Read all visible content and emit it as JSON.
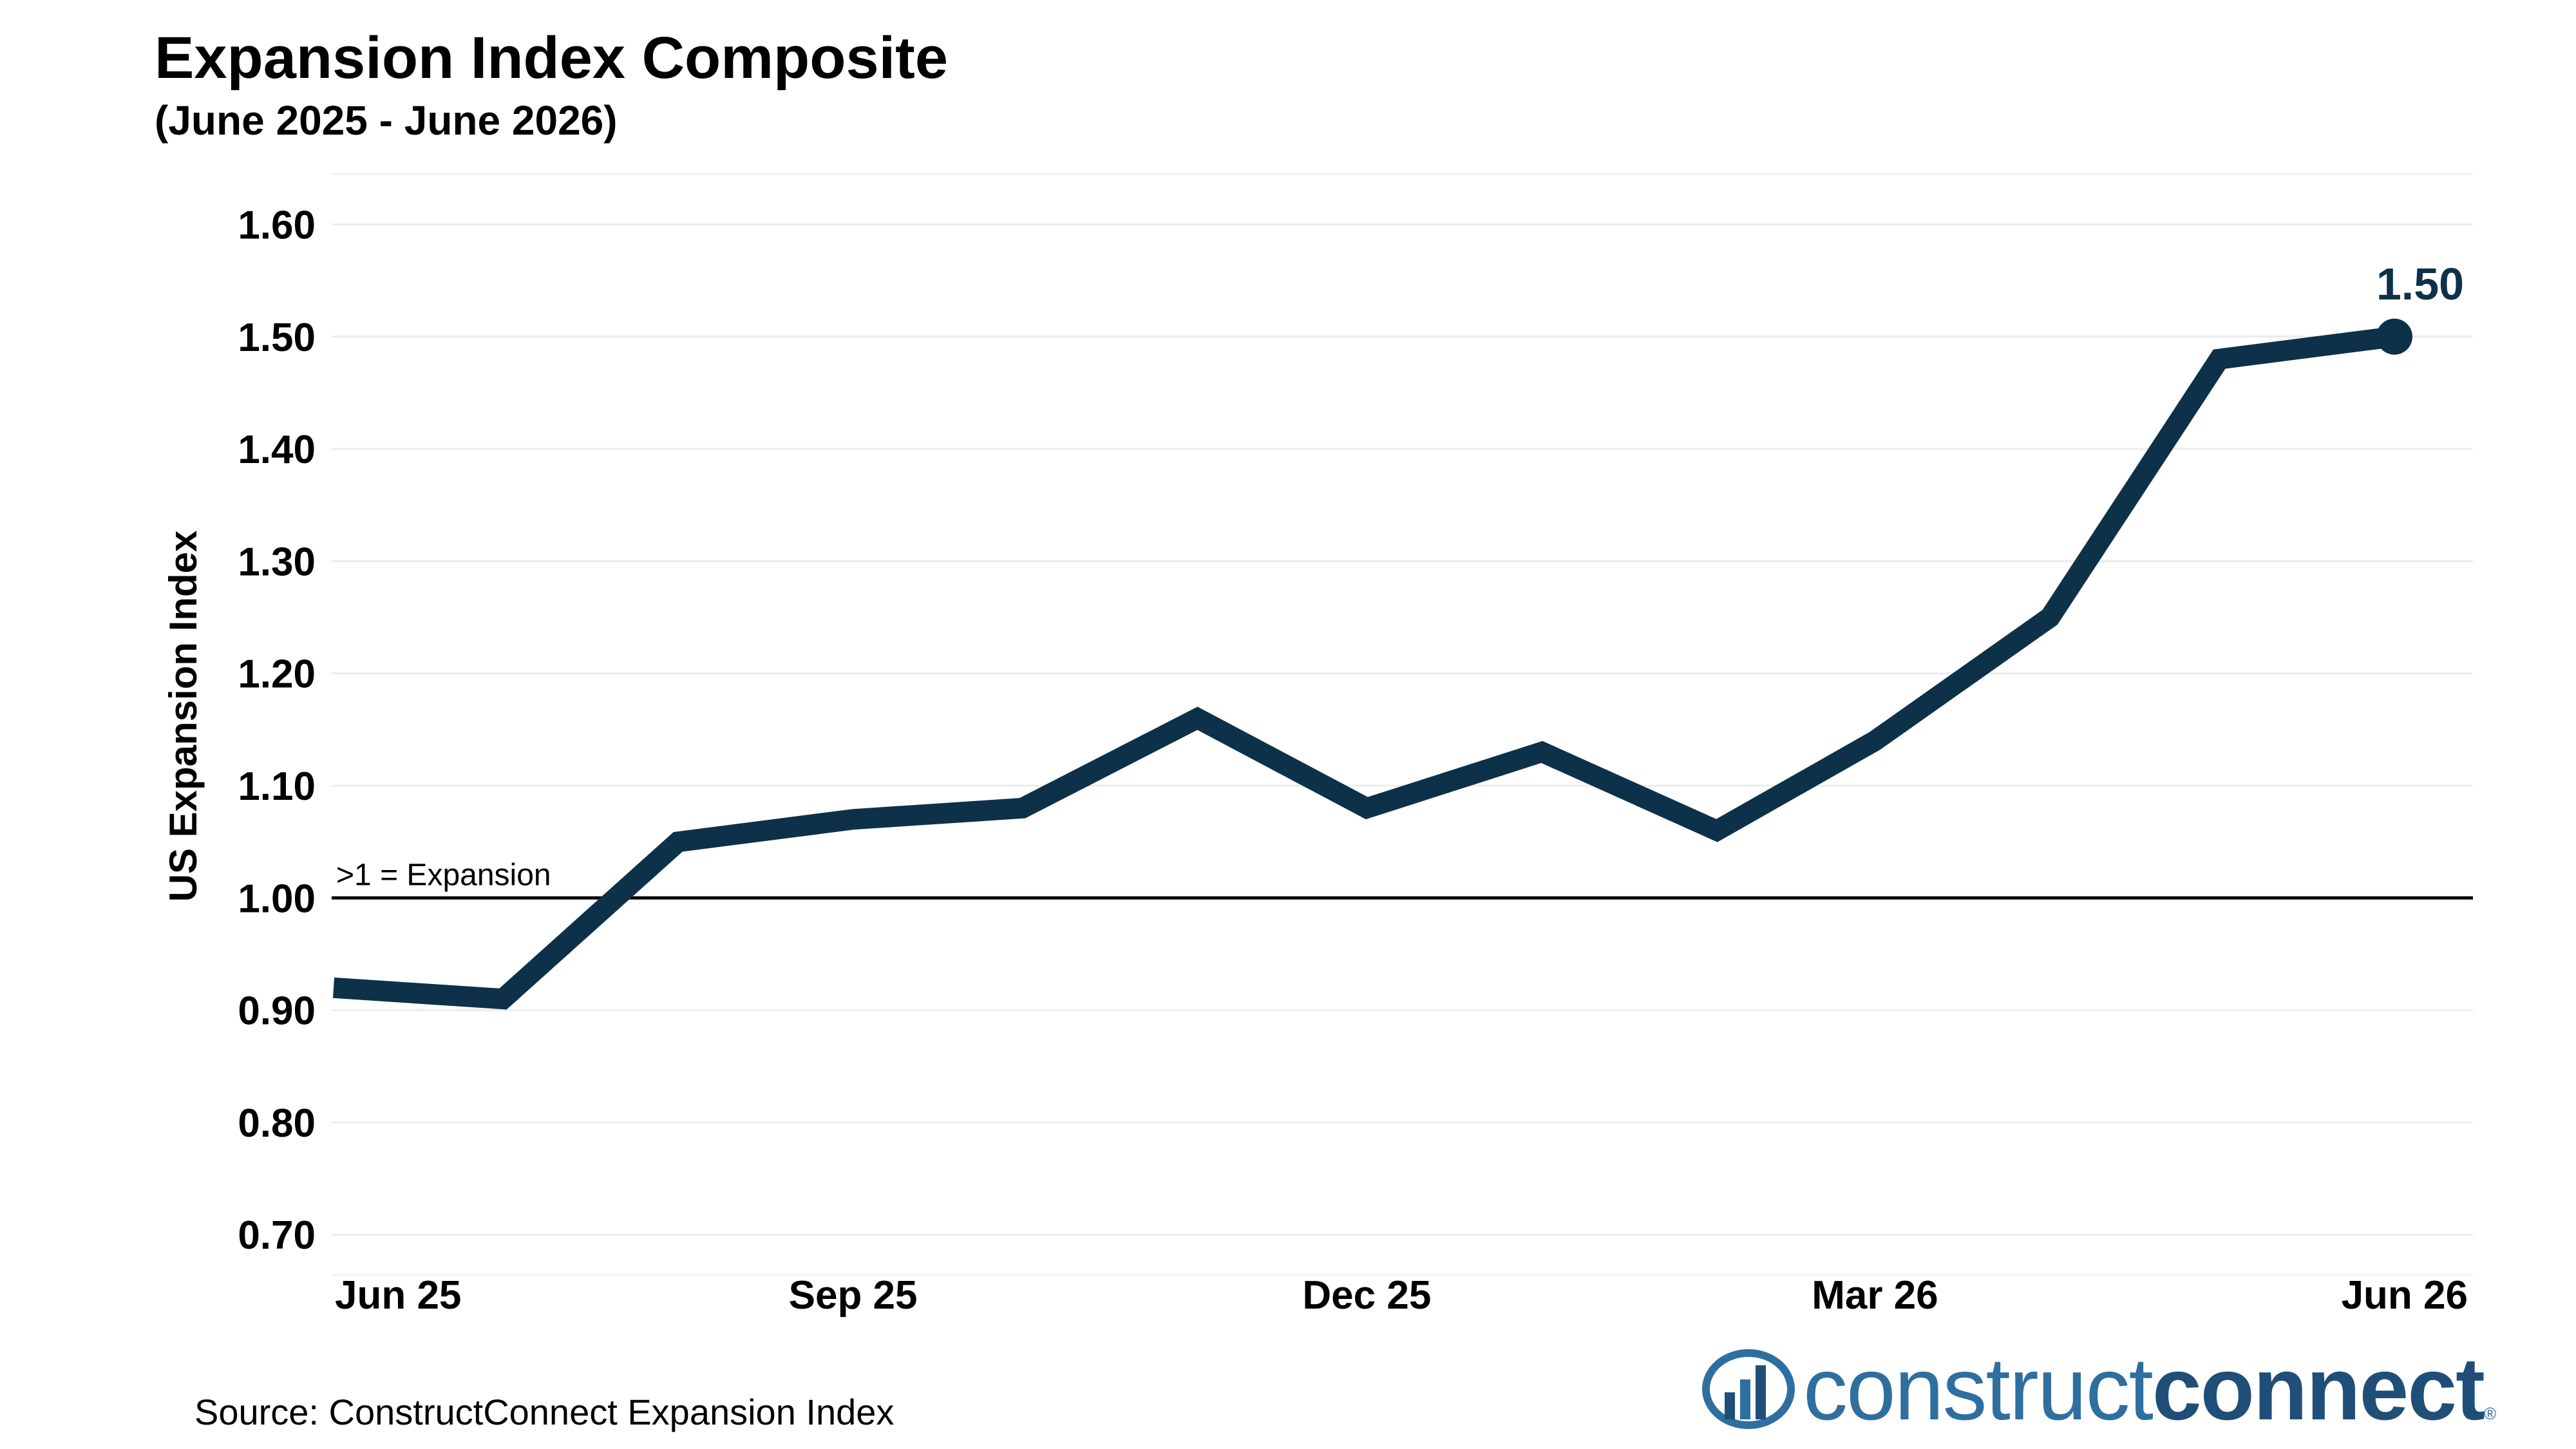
{
  "chart_data": {
    "type": "line",
    "title": "Expansion Index Composite",
    "subtitle": "(June 2025 - June 2026)",
    "ylabel": "US Expansion Index",
    "ylim": [
      0.7,
      1.6
    ],
    "yticks": [
      "0.70",
      "0.80",
      "0.90",
      "1.00",
      "1.10",
      "1.20",
      "1.30",
      "1.40",
      "1.50",
      "1.60"
    ],
    "x": [
      "2025-06-01",
      "2025-07-01",
      "2025-08-01",
      "2025-09-01",
      "2025-10-01",
      "2025-11-01",
      "2025-12-01",
      "2026-01-01",
      "2026-02-01",
      "2026-03-01",
      "2026-04-01",
      "2026-05-01",
      "2026-06-01"
    ],
    "xticks": [
      {
        "date": "2025-06-01",
        "label": "Jun 25"
      },
      {
        "date": "2025-09-01",
        "label": "Sep 25"
      },
      {
        "date": "2025-12-01",
        "label": "Dec 25"
      },
      {
        "date": "2026-03-01",
        "label": "Mar 26"
      },
      {
        "date": "2026-06-01",
        "label": "Jun 26"
      }
    ],
    "series": [
      {
        "values": [
          0.92,
          0.91,
          1.05,
          1.07,
          1.08,
          1.16,
          1.08,
          1.13,
          1.06,
          1.14,
          1.25,
          1.48,
          1.5
        ],
        "color": "#0d3149"
      }
    ],
    "reference_line": {
      "y": 1.0,
      "label": ">1 = Expansion"
    },
    "end_label": "1.50",
    "grid": true,
    "legend": "none"
  },
  "source": "Source: ConstructConnect Expansion Index",
  "logo": {
    "light": "construct",
    "bold": "connect",
    "reg": "®"
  }
}
